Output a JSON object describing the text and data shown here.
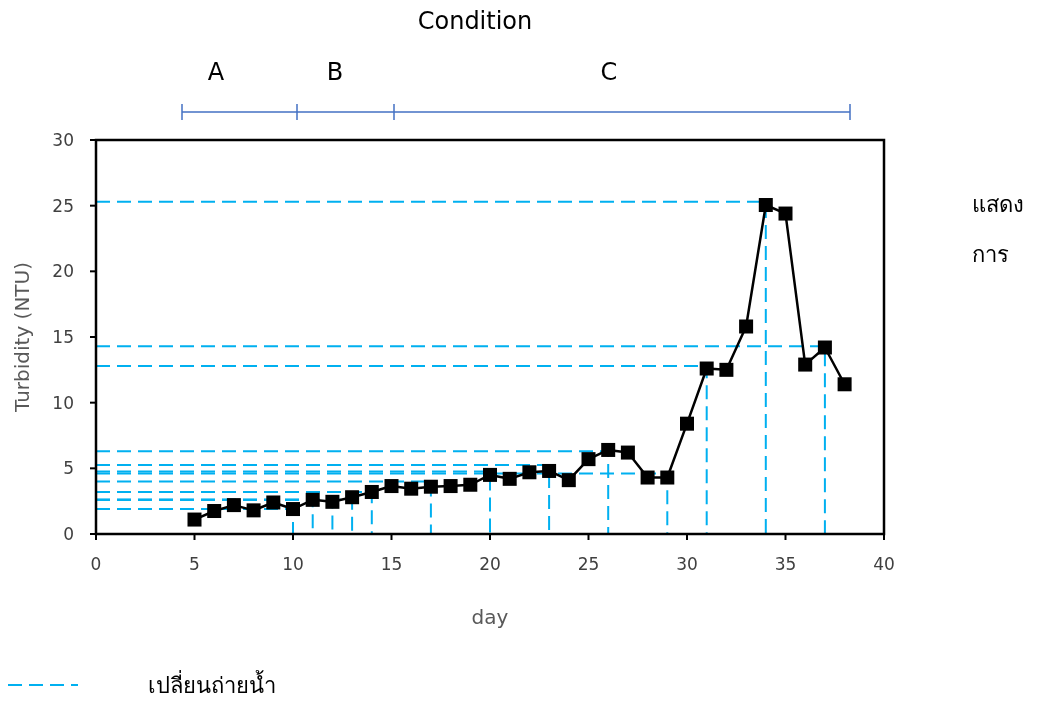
{
  "chart_data": {
    "type": "line",
    "title": "Condition",
    "xlabel": "day",
    "ylabel": "Turbidity (NTU)",
    "xlim": [
      0,
      40
    ],
    "ylim": [
      0,
      30
    ],
    "xticks": [
      0,
      5,
      10,
      15,
      20,
      25,
      30,
      35,
      40
    ],
    "yticks": [
      0,
      5,
      10,
      15,
      20,
      25,
      30
    ],
    "grid": false,
    "legend": "bottom left",
    "marker": "square",
    "x": [
      5,
      6,
      7,
      8,
      9,
      10,
      11,
      12,
      13,
      14,
      15,
      16,
      17,
      18,
      19,
      20,
      21,
      22,
      23,
      24,
      25,
      26,
      27,
      28,
      29,
      30,
      31,
      32,
      33,
      34,
      35,
      36,
      37,
      38
    ],
    "series": [
      {
        "color": "#000000",
        "values": [
          1.1,
          1.75,
          2.2,
          1.8,
          2.4,
          1.9,
          2.6,
          2.45,
          2.8,
          3.2,
          3.65,
          3.45,
          3.6,
          3.65,
          3.75,
          4.5,
          4.2,
          4.7,
          4.8,
          4.1,
          5.7,
          6.4,
          6.2,
          4.3,
          4.3,
          8.4,
          12.6,
          12.5,
          15.8,
          25.05,
          24.4,
          12.9,
          14.2,
          11.4
        ]
      },
      {
        "name": "เปลี่ยนถ่ายน้ำ",
        "type": "line",
        "color": "#00b0f0",
        "line_style": "dashed",
        "marker": "none",
        "x": [
          0,
          10,
          10
        ],
        "values": [
          1.9,
          1.9,
          0
        ]
      },
      {
        "color": "#00b0f0",
        "line_style": "dashed",
        "marker": "none",
        "x": [
          0,
          11,
          11
        ],
        "values": [
          2.6,
          2.6,
          0
        ]
      },
      {
        "color": "#00b0f0",
        "line_style": "dashed",
        "marker": "none",
        "x": [
          0,
          12,
          12
        ],
        "values": [
          2.6,
          2.6,
          0
        ]
      },
      {
        "color": "#00b0f0",
        "line_style": "dashed",
        "marker": "none",
        "x": [
          0,
          13,
          13
        ],
        "values": [
          2.6,
          2.6,
          0
        ]
      },
      {
        "color": "#00b0f0",
        "line_style": "dashed",
        "marker": "none",
        "x": [
          0,
          14,
          14
        ],
        "values": [
          3.2,
          3.2,
          0
        ]
      },
      {
        "color": "#00b0f0",
        "line_style": "dashed",
        "marker": "none",
        "x": [
          0,
          17,
          17
        ],
        "values": [
          4.0,
          4.0,
          0
        ]
      },
      {
        "color": "#00b0f0",
        "line_style": "dashed",
        "marker": "none",
        "x": [
          0,
          20,
          20
        ],
        "values": [
          4.75,
          4.75,
          0
        ]
      },
      {
        "color": "#00b0f0",
        "line_style": "dashed",
        "marker": "none",
        "x": [
          0,
          23,
          23
        ],
        "values": [
          5.25,
          5.25,
          0
        ]
      },
      {
        "color": "#00b0f0",
        "line_style": "dashed",
        "marker": "none",
        "x": [
          0,
          26,
          26
        ],
        "values": [
          6.3,
          6.3,
          0
        ]
      },
      {
        "color": "#00b0f0",
        "line_style": "dashed",
        "marker": "none",
        "x": [
          0,
          29,
          29
        ],
        "values": [
          4.6,
          4.6,
          0
        ]
      },
      {
        "color": "#00b0f0",
        "line_style": "dashed",
        "marker": "none",
        "x": [
          0,
          31,
          31
        ],
        "values": [
          12.8,
          12.8,
          0
        ]
      },
      {
        "color": "#00b0f0",
        "line_style": "dashed",
        "marker": "none",
        "x": [
          0,
          34,
          34
        ],
        "values": [
          25.3,
          25.3,
          0
        ]
      },
      {
        "color": "#00b0f0",
        "line_style": "dashed",
        "marker": "none",
        "x": [
          0,
          37,
          37
        ],
        "values": [
          14.3,
          14.3,
          0
        ]
      }
    ],
    "annotations": [
      "A",
      "B",
      "C",
      "แสดง",
      "การ"
    ]
  }
}
